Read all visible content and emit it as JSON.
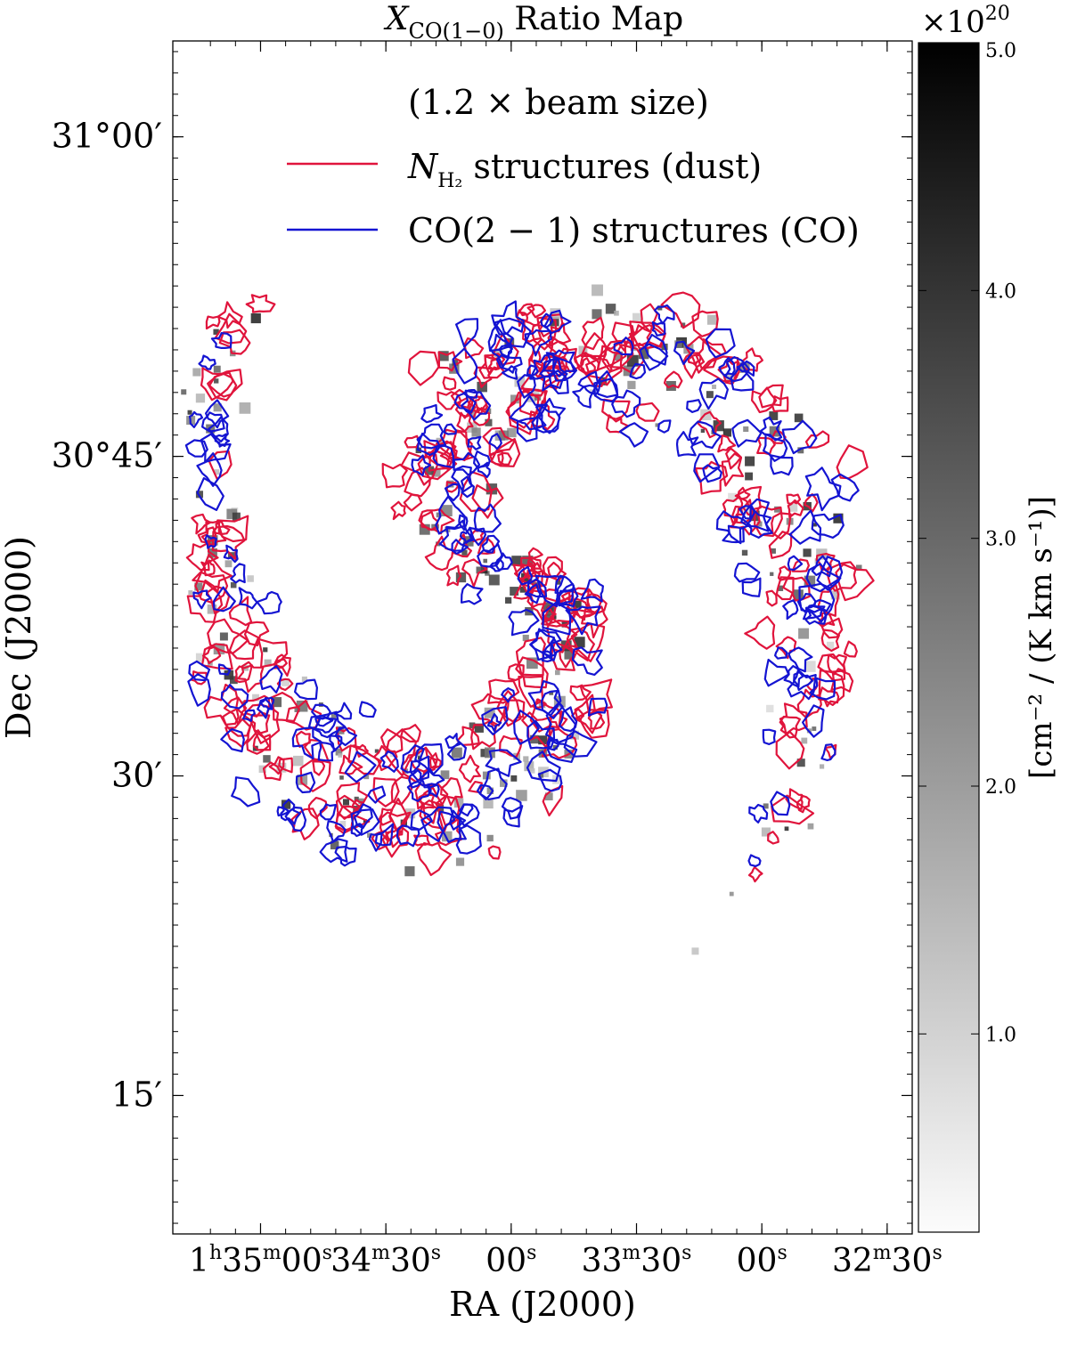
{
  "chart_data": {
    "type": "heatmap",
    "title_main": "X",
    "title_sub": "CO(1−0)",
    "title_rest": " Ratio Map",
    "xlabel": "RA (J2000)",
    "ylabel": "Dec (J2000)",
    "xticks": [
      {
        "label": "1h35m00s",
        "ra_min": 0.0
      },
      {
        "label": "34m30s",
        "ra_min": -0.5
      },
      {
        "label": "00s",
        "ra_min": -1.0
      },
      {
        "label": "33m30s",
        "ra_min": -1.5
      },
      {
        "label": "00s",
        "ra_min": -2.0
      },
      {
        "label": "32m30s",
        "ra_min": -2.5
      }
    ],
    "yticks": [
      {
        "label": "31°00′",
        "dec_arcmin": 60
      },
      {
        "label": "30°45′",
        "dec_arcmin": 45
      },
      {
        "label": "30′",
        "dec_arcmin": 30
      },
      {
        "label": "15′",
        "dec_arcmin": 15
      }
    ],
    "xlim": [
      0.35,
      -2.6
    ],
    "ylim": [
      8.5,
      64.5
    ],
    "legend": {
      "placement": "top",
      "header": "(1.2 × beam size)",
      "entries": [
        {
          "pre": "N",
          "sub": "H₂",
          "post": " structures (dust)",
          "color": "#e0143c"
        },
        {
          "pre": "CO(2 − 1) structures (CO)",
          "sub": "",
          "post": "",
          "color": "#1414d2"
        }
      ]
    },
    "colorbar": {
      "label": "[cm⁻² / (K km s⁻¹)]",
      "exponent_label": "×10",
      "exponent_power": "20",
      "range": [
        0.2,
        5.0
      ],
      "ticks": [
        "1.0",
        "2.0",
        "3.0",
        "4.0",
        "5.0"
      ],
      "tick_values": [
        1.0,
        2.0,
        3.0,
        4.0,
        5.0
      ],
      "cmap": "gray_r"
    },
    "colors": {
      "dust": "#e0143c",
      "co": "#1414d2"
    },
    "center": {
      "ra_min": -0.97,
      "dec_arcmin": 39.5
    }
  }
}
